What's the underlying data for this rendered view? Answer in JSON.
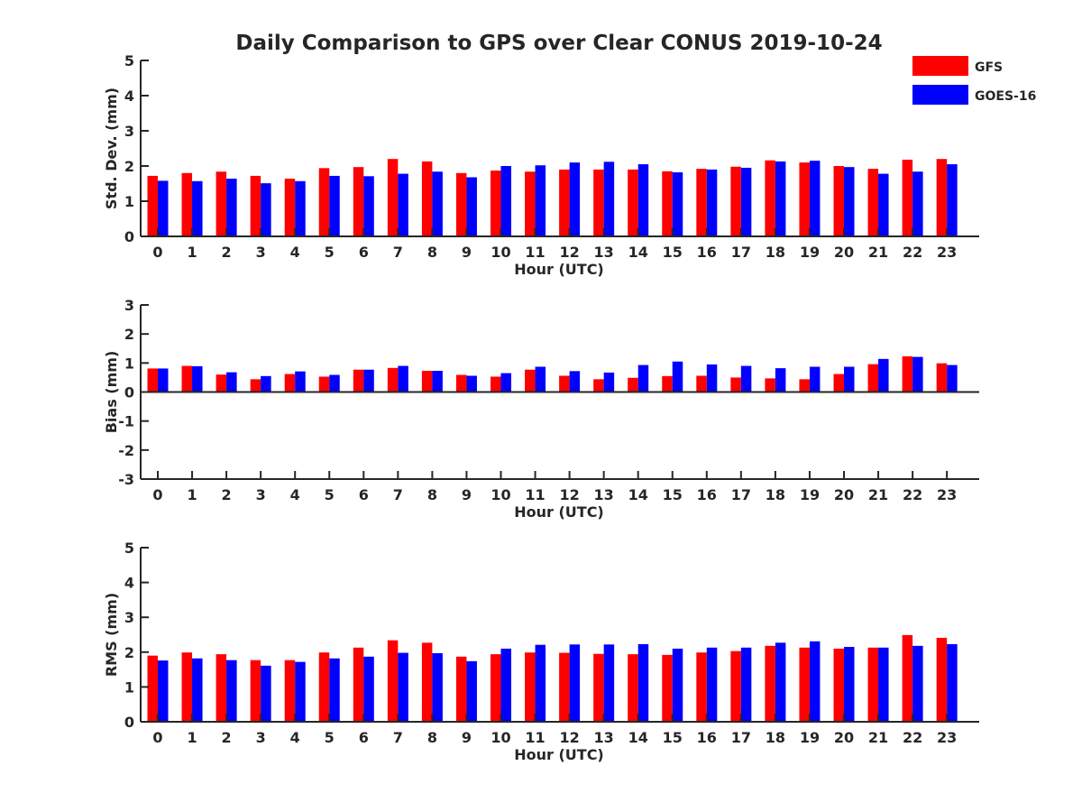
{
  "title": "Daily Comparison to GPS over Clear CONUS 2019-10-24",
  "legend": [
    {
      "name": "GFS",
      "color": "#ff0000"
    },
    {
      "name": "GOES-16",
      "color": "#0000ff"
    }
  ],
  "chart_data": [
    {
      "type": "bar",
      "xlabel": "Hour (UTC)",
      "ylabel": "Std. Dev. (mm)",
      "ylim": [
        0,
        5
      ],
      "yticks": [
        "0",
        "1",
        "2",
        "3",
        "4",
        "5"
      ],
      "categories": [
        "0",
        "1",
        "2",
        "3",
        "4",
        "5",
        "6",
        "7",
        "8",
        "9",
        "10",
        "11",
        "12",
        "13",
        "14",
        "15",
        "16",
        "17",
        "18",
        "19",
        "20",
        "21",
        "22",
        "23"
      ],
      "series": [
        {
          "name": "GFS",
          "color": "#ff0000",
          "values": [
            1.72,
            1.8,
            1.84,
            1.72,
            1.64,
            1.94,
            1.97,
            2.2,
            2.13,
            1.8,
            1.87,
            1.84,
            1.9,
            1.9,
            1.9,
            1.85,
            1.92,
            1.98,
            2.16,
            2.1,
            2.0,
            1.92,
            2.18,
            2.2
          ]
        },
        {
          "name": "GOES-16",
          "color": "#0000ff",
          "values": [
            1.58,
            1.57,
            1.64,
            1.51,
            1.57,
            1.72,
            1.71,
            1.78,
            1.84,
            1.68,
            2.0,
            2.02,
            2.1,
            2.12,
            2.05,
            1.82,
            1.9,
            1.95,
            2.13,
            2.15,
            1.97,
            1.78,
            1.84,
            2.05
          ]
        }
      ]
    },
    {
      "type": "bar",
      "xlabel": "Hour (UTC)",
      "ylabel": "Bias (mm)",
      "ylim": [
        -3,
        3
      ],
      "yticks": [
        "-3",
        "-2",
        "-1",
        "0",
        "1",
        "2",
        "3"
      ],
      "categories": [
        "0",
        "1",
        "2",
        "3",
        "4",
        "5",
        "6",
        "7",
        "8",
        "9",
        "10",
        "11",
        "12",
        "13",
        "14",
        "15",
        "16",
        "17",
        "18",
        "19",
        "20",
        "21",
        "22",
        "23"
      ],
      "series": [
        {
          "name": "GFS",
          "color": "#ff0000",
          "values": [
            0.81,
            0.9,
            0.6,
            0.44,
            0.62,
            0.53,
            0.77,
            0.83,
            0.73,
            0.59,
            0.53,
            0.77,
            0.56,
            0.44,
            0.49,
            0.55,
            0.56,
            0.5,
            0.47,
            0.44,
            0.62,
            0.96,
            1.23,
            0.99
          ]
        },
        {
          "name": "GOES-16",
          "color": "#0000ff",
          "values": [
            0.81,
            0.89,
            0.68,
            0.55,
            0.71,
            0.59,
            0.77,
            0.9,
            0.73,
            0.56,
            0.65,
            0.87,
            0.72,
            0.67,
            0.93,
            1.05,
            0.95,
            0.9,
            0.82,
            0.87,
            0.87,
            1.14,
            1.21,
            0.93
          ]
        }
      ]
    },
    {
      "type": "bar",
      "xlabel": "Hour (UTC)",
      "ylabel": "RMS (mm)",
      "ylim": [
        0,
        5
      ],
      "yticks": [
        "0",
        "1",
        "2",
        "3",
        "4",
        "5"
      ],
      "categories": [
        "0",
        "1",
        "2",
        "3",
        "4",
        "5",
        "6",
        "7",
        "8",
        "9",
        "10",
        "11",
        "12",
        "13",
        "14",
        "15",
        "16",
        "17",
        "18",
        "19",
        "20",
        "21",
        "22",
        "23"
      ],
      "series": [
        {
          "name": "GFS",
          "color": "#ff0000",
          "values": [
            1.9,
            1.99,
            1.94,
            1.77,
            1.77,
            1.99,
            2.13,
            2.34,
            2.27,
            1.87,
            1.94,
            1.99,
            1.98,
            1.95,
            1.94,
            1.92,
            1.99,
            2.03,
            2.18,
            2.13,
            2.1,
            2.13,
            2.49,
            2.41
          ]
        },
        {
          "name": "GOES-16",
          "color": "#0000ff",
          "values": [
            1.76,
            1.82,
            1.77,
            1.61,
            1.72,
            1.82,
            1.87,
            1.98,
            1.97,
            1.74,
            2.1,
            2.21,
            2.22,
            2.22,
            2.23,
            2.1,
            2.13,
            2.13,
            2.27,
            2.31,
            2.15,
            2.13,
            2.18,
            2.23
          ]
        }
      ]
    }
  ]
}
